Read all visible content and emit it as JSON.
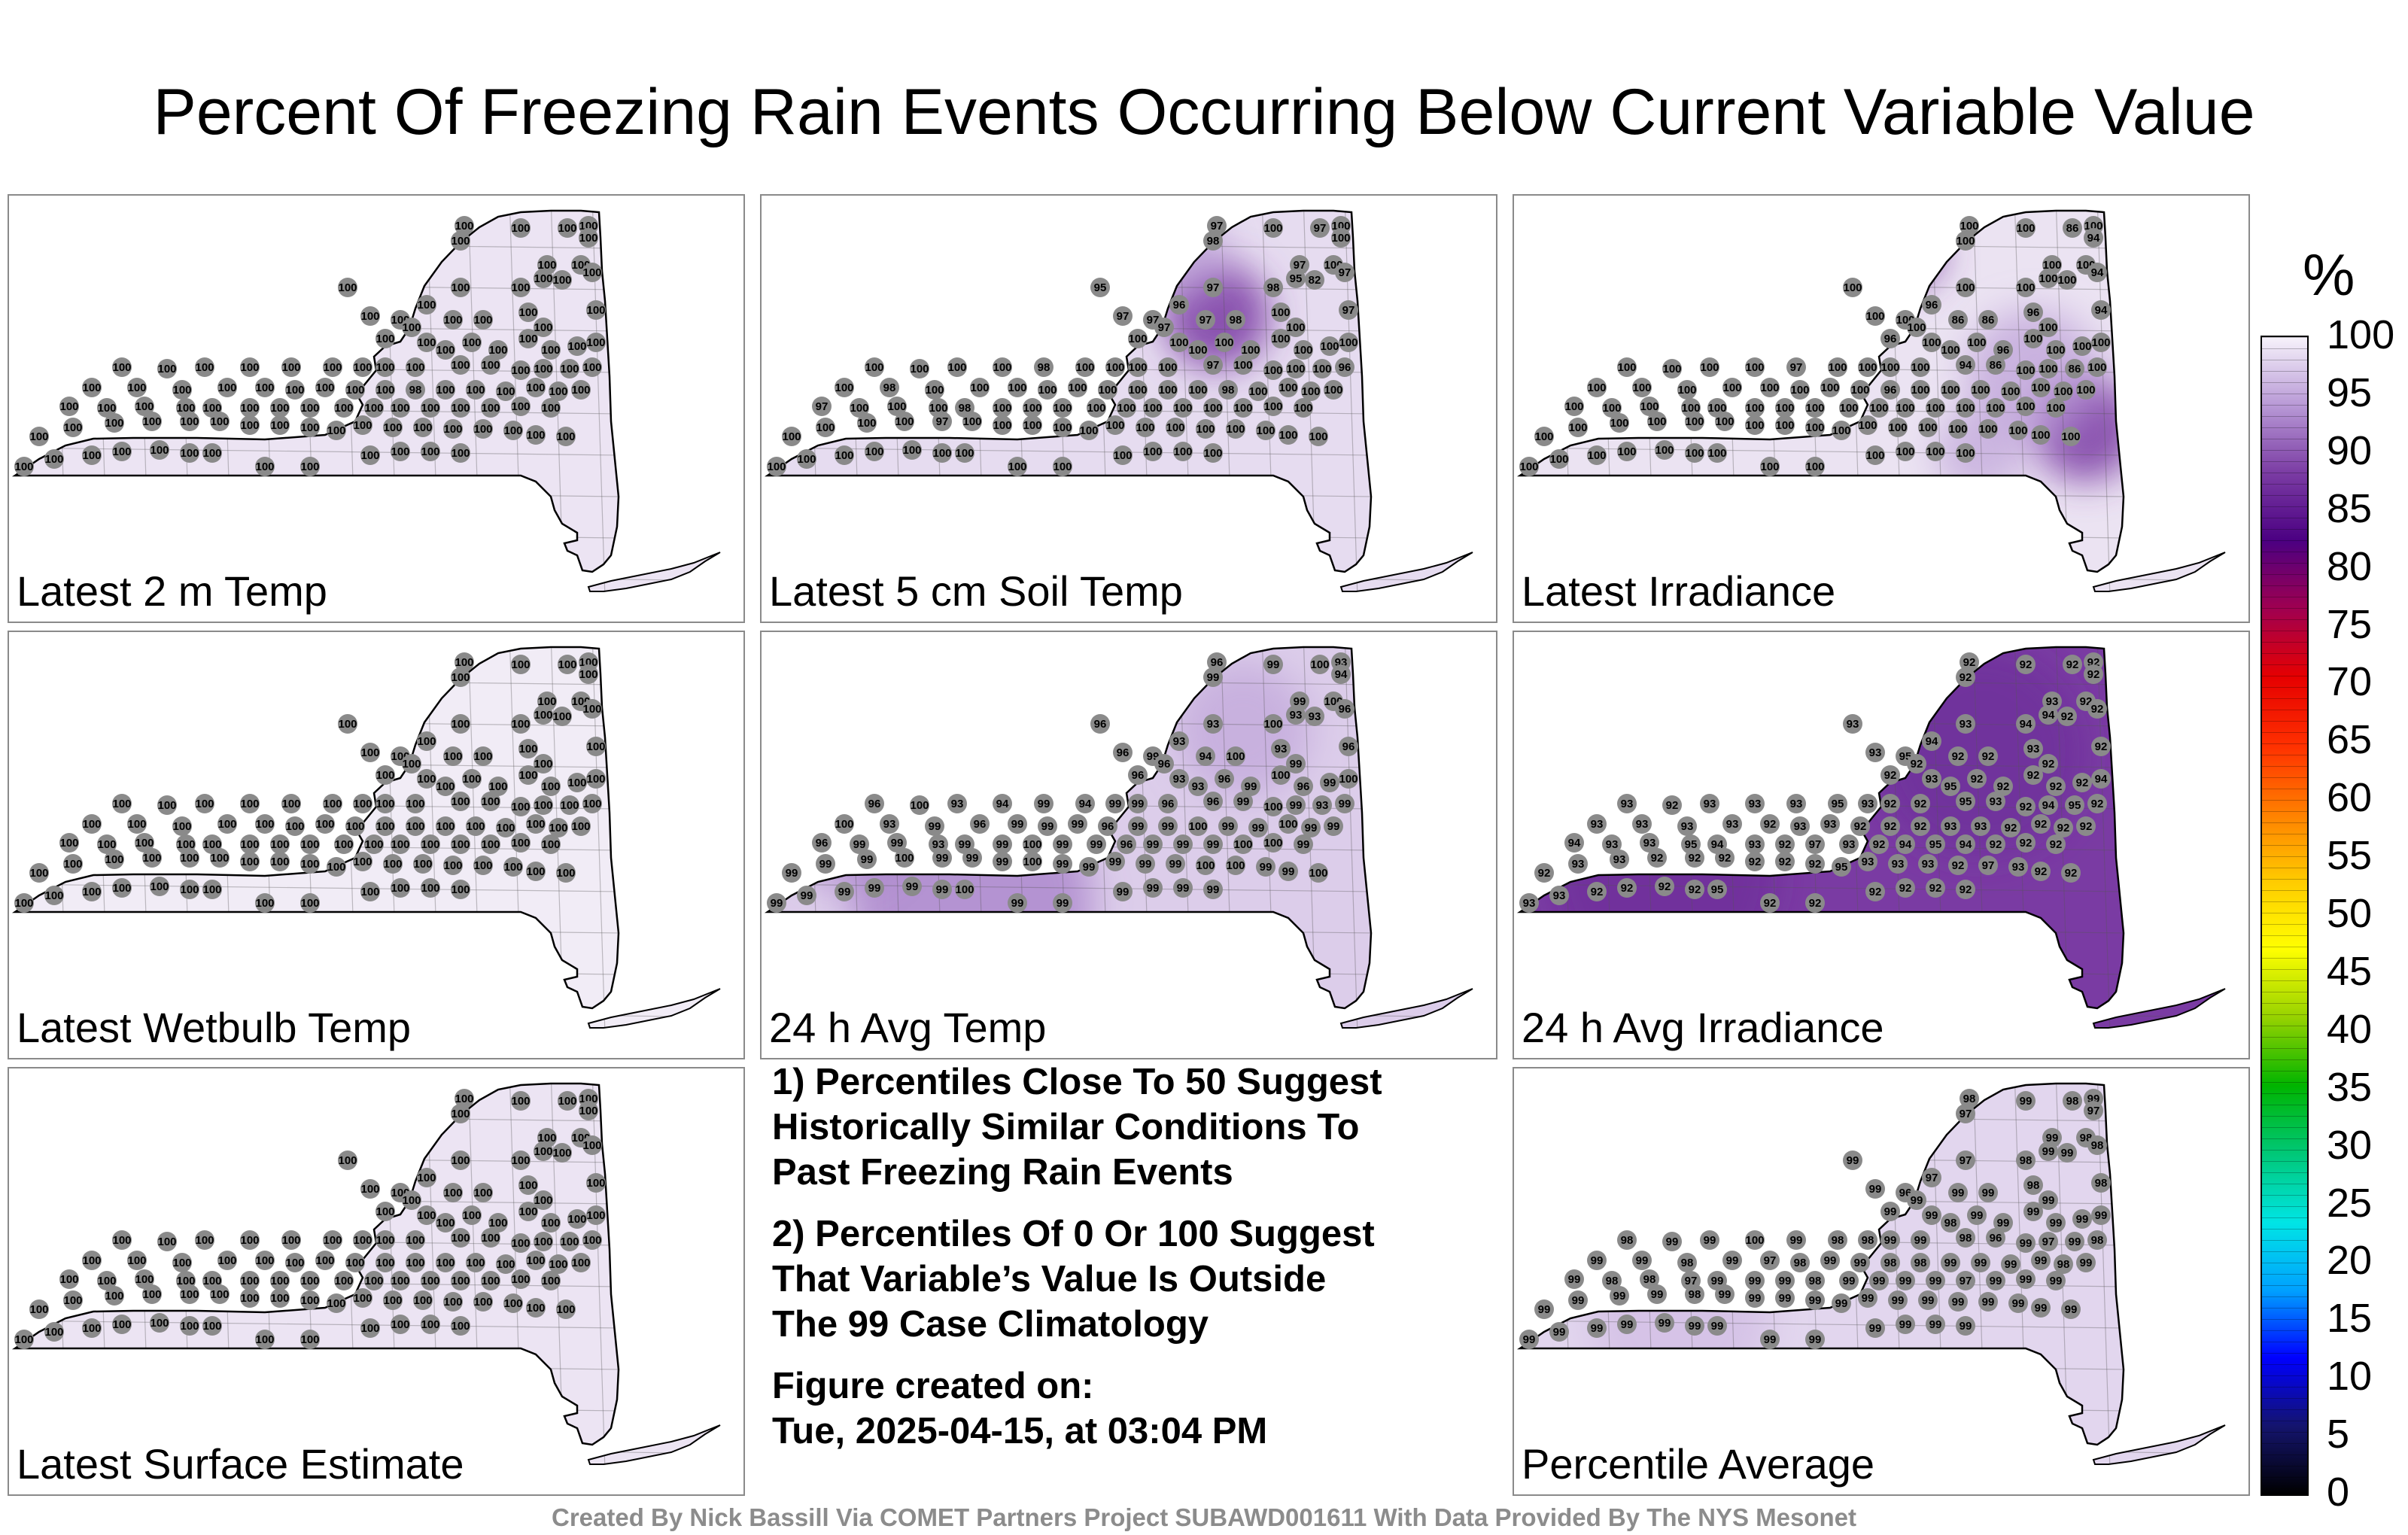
{
  "title": "Percent Of Freezing Rain Events Occurring Below Current Variable Value",
  "panels": [
    {
      "label": "Latest 2 m Temp",
      "base": "#ece4f3",
      "stations": [
        100,
        100,
        100,
        100,
        100,
        100,
        100,
        100,
        100,
        100,
        100,
        100,
        100,
        100,
        100,
        100,
        100,
        100,
        100,
        100,
        100,
        100,
        100,
        100,
        100,
        100,
        100,
        100,
        100,
        100,
        100,
        100,
        100,
        100,
        100,
        100,
        100,
        100,
        100,
        100,
        100,
        100,
        100,
        100,
        100,
        100,
        100,
        100,
        100,
        100,
        100,
        100,
        100,
        100,
        100,
        100,
        98,
        100,
        100,
        100,
        100,
        100,
        100,
        100,
        100,
        100,
        100,
        100,
        100,
        100,
        100,
        100,
        100,
        100,
        100,
        100,
        100,
        100,
        100,
        100,
        100,
        100,
        100,
        100,
        100,
        100,
        100,
        100,
        100,
        100,
        100,
        100,
        100,
        100,
        100,
        100,
        100,
        100,
        100,
        100,
        100,
        100,
        100,
        100,
        100,
        100,
        100,
        100,
        100,
        100
      ]
    },
    {
      "label": "Latest 5 cm Soil Temp",
      "base": "#e6dcf0",
      "stations": [
        97,
        100,
        97,
        100,
        100,
        98,
        97,
        100,
        95,
        97,
        98,
        95,
        82,
        97,
        97,
        97,
        96,
        97,
        98,
        100,
        100,
        97,
        100,
        97,
        100,
        100,
        100,
        100,
        100,
        100,
        100,
        100,
        100,
        100,
        100,
        100,
        98,
        100,
        100,
        100,
        100,
        97,
        100,
        100,
        100,
        100,
        96,
        100,
        98,
        100,
        100,
        100,
        100,
        100,
        100,
        100,
        100,
        100,
        98,
        100,
        100,
        100,
        100,
        97,
        100,
        100,
        100,
        98,
        100,
        100,
        100,
        100,
        100,
        100,
        100,
        100,
        100,
        100,
        100,
        100,
        100,
        100,
        100,
        97,
        100,
        100,
        100,
        100,
        100,
        100,
        100,
        100,
        100,
        100,
        100,
        100,
        100,
        100,
        100,
        100,
        100,
        100,
        100,
        100,
        100,
        100,
        100,
        100,
        100,
        100
      ]
    },
    {
      "label": "Latest Irradiance",
      "base": "#ebe3f2",
      "stations": [
        100,
        100,
        86,
        100,
        94,
        100,
        100,
        100,
        100,
        100,
        100,
        100,
        100,
        94,
        100,
        100,
        96,
        86,
        86,
        96,
        100,
        94,
        96,
        100,
        100,
        100,
        100,
        96,
        100,
        100,
        100,
        100,
        100,
        100,
        100,
        100,
        97,
        100,
        100,
        100,
        100,
        94,
        86,
        100,
        100,
        86,
        100,
        100,
        100,
        100,
        100,
        100,
        100,
        100,
        100,
        96,
        100,
        100,
        100,
        100,
        100,
        100,
        100,
        100,
        100,
        100,
        100,
        100,
        100,
        100,
        100,
        100,
        100,
        100,
        100,
        100,
        100,
        100,
        100,
        100,
        100,
        100,
        100,
        100,
        100,
        100,
        100,
        100,
        100,
        100,
        100,
        100,
        100,
        100,
        100,
        100,
        100,
        100,
        100,
        100,
        100,
        100,
        100,
        100,
        100,
        100,
        100,
        100,
        100,
        100
      ]
    },
    {
      "label": "Latest Wetbulb Temp",
      "base": "#f1ecf6",
      "stations": [
        100,
        100,
        100,
        100,
        100,
        100,
        100,
        100,
        100,
        100,
        100,
        100,
        100,
        100,
        100,
        100,
        100,
        100,
        100,
        100,
        100,
        100,
        100,
        100,
        100,
        100,
        100,
        100,
        100,
        100,
        100,
        100,
        100,
        100,
        100,
        100,
        100,
        100,
        100,
        100,
        100,
        100,
        100,
        100,
        100,
        100,
        100,
        100,
        100,
        100,
        100,
        100,
        100,
        100,
        100,
        100,
        100,
        100,
        100,
        100,
        100,
        100,
        100,
        100,
        100,
        100,
        100,
        100,
        100,
        100,
        100,
        100,
        100,
        100,
        100,
        100,
        100,
        100,
        100,
        100,
        100,
        100,
        100,
        100,
        100,
        100,
        100,
        100,
        100,
        100,
        100,
        100,
        100,
        100,
        100,
        100,
        100,
        100,
        100,
        100,
        100,
        100,
        100,
        100,
        100,
        100,
        100,
        100,
        100,
        100
      ]
    },
    {
      "label": "24 h Avg Temp",
      "base": "#dccdea",
      "stations": [
        96,
        99,
        100,
        93,
        94,
        99,
        99,
        100,
        96,
        93,
        100,
        93,
        93,
        96,
        96,
        99,
        93,
        94,
        100,
        93,
        99,
        96,
        96,
        96,
        93,
        93,
        96,
        99,
        100,
        96,
        99,
        100,
        96,
        100,
        93,
        94,
        99,
        94,
        99,
        99,
        96,
        96,
        99,
        100,
        99,
        93,
        99,
        100,
        93,
        99,
        96,
        99,
        99,
        99,
        96,
        99,
        99,
        100,
        99,
        99,
        100,
        99,
        99,
        96,
        99,
        99,
        93,
        99,
        99,
        100,
        99,
        99,
        96,
        99,
        99,
        99,
        100,
        100,
        99,
        99,
        99,
        99,
        100,
        99,
        99,
        99,
        100,
        99,
        99,
        99,
        99,
        99,
        100,
        100,
        99,
        99,
        100,
        99,
        99,
        99,
        99,
        99,
        99,
        100,
        99,
        99,
        99,
        99,
        99,
        99
      ]
    },
    {
      "label": "24 h Avg Irradiance",
      "base": "#7a3ba3",
      "stations": [
        92,
        92,
        92,
        92,
        92,
        92,
        93,
        92,
        93,
        93,
        94,
        94,
        92,
        92,
        93,
        95,
        94,
        92,
        92,
        93,
        92,
        92,
        92,
        92,
        93,
        95,
        92,
        92,
        92,
        92,
        92,
        94,
        93,
        92,
        93,
        93,
        93,
        95,
        93,
        92,
        92,
        95,
        93,
        92,
        94,
        95,
        92,
        93,
        93,
        93,
        93,
        92,
        93,
        93,
        92,
        92,
        92,
        93,
        93,
        92,
        92,
        92,
        92,
        94,
        93,
        93,
        95,
        94,
        93,
        92,
        97,
        93,
        92,
        94,
        95,
        94,
        92,
        92,
        92,
        92,
        93,
        93,
        92,
        92,
        92,
        92,
        92,
        92,
        95,
        93,
        93,
        93,
        92,
        97,
        93,
        92,
        92,
        93,
        93,
        92,
        92,
        92,
        92,
        95,
        92,
        92,
        92,
        92,
        92,
        92
      ]
    },
    {
      "label": "Latest Surface Estimate",
      "base": "#ece4f3",
      "stations": [
        100,
        100,
        100,
        100,
        100,
        100,
        100,
        100,
        100,
        100,
        100,
        100,
        100,
        100,
        100,
        100,
        100,
        100,
        100,
        100,
        100,
        100,
        100,
        100,
        100,
        100,
        100,
        100,
        100,
        100,
        100,
        100,
        100,
        100,
        100,
        100,
        100,
        100,
        100,
        100,
        100,
        100,
        100,
        100,
        100,
        100,
        100,
        100,
        100,
        100,
        100,
        100,
        100,
        100,
        100,
        100,
        100,
        100,
        100,
        100,
        100,
        100,
        100,
        100,
        100,
        100,
        100,
        100,
        100,
        100,
        100,
        100,
        100,
        100,
        100,
        100,
        100,
        100,
        100,
        100,
        100,
        100,
        100,
        100,
        100,
        100,
        100,
        100,
        100,
        100,
        100,
        100,
        100,
        100,
        100,
        100,
        100,
        100,
        100,
        100,
        100,
        100,
        100,
        100,
        100,
        100,
        100,
        100,
        100,
        100
      ]
    },
    {
      "label": "Percentile Average",
      "base": "#e2d6ee",
      "stations": [
        98,
        99,
        98,
        99,
        97,
        97,
        99,
        98,
        99,
        97,
        98,
        99,
        99,
        98,
        99,
        96,
        97,
        99,
        99,
        98,
        99,
        98,
        99,
        99,
        99,
        98,
        99,
        99,
        99,
        99,
        99,
        99,
        98,
        99,
        99,
        100,
        99,
        98,
        98,
        99,
        99,
        98,
        96,
        99,
        97,
        99,
        98,
        99,
        99,
        98,
        99,
        97,
        98,
        99,
        99,
        98,
        98,
        99,
        99,
        99,
        99,
        98,
        99,
        99,
        98,
        98,
        97,
        99,
        99,
        99,
        98,
        99,
        99,
        99,
        99,
        97,
        99,
        99,
        99,
        99,
        99,
        99,
        99,
        98,
        99,
        99,
        99,
        99,
        99,
        99,
        99,
        99,
        99,
        99,
        99,
        99,
        99,
        99,
        99,
        99,
        99,
        99,
        99,
        99,
        99,
        99,
        99,
        99,
        99,
        99
      ]
    }
  ],
  "notes": [
    "1) Percentiles Close To 50 Suggest\nHistorically Similar Conditions To\nPast Freezing Rain Events",
    "2) Percentiles Of 0 Or 100 Suggest\nThat Variable’s Value Is Outside\nThe 99 Case Climatology",
    "Figure created on:\nTue, 2025-04-15, at 03:04 PM"
  ],
  "footer": "Created By Nick Bassill Via COMET Partners Project SUBAWD001611 With Data Provided By The NYS Mesonet",
  "colorbar": {
    "unit": "%",
    "ticks": [
      "100",
      "95",
      "90",
      "85",
      "80",
      "75",
      "70",
      "65",
      "60",
      "55",
      "50",
      "45",
      "40",
      "35",
      "30",
      "25",
      "20",
      "15",
      "10",
      "5",
      "0"
    ],
    "colors": [
      "#000000",
      "#14146e",
      "#0000ff",
      "#00a0ff",
      "#00e5e5",
      "#00c878",
      "#00b400",
      "#96d200",
      "#ffff00",
      "#ffcc00",
      "#ff8000",
      "#ff3000",
      "#e60000",
      "#a00050",
      "#4b0082",
      "#7a3ba3",
      "#b899d6",
      "#f7f3fb"
    ]
  }
}
